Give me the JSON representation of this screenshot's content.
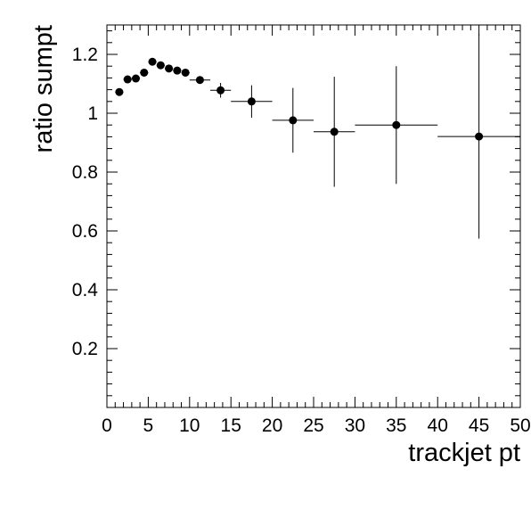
{
  "chart_data": {
    "type": "scatter",
    "title": "",
    "xlabel": "trackjet pt",
    "ylabel": "ratio sumpt",
    "xlim": [
      0,
      50
    ],
    "ylim": [
      0,
      1.3
    ],
    "grid": false,
    "x_ticks": [
      0,
      5,
      10,
      15,
      20,
      25,
      30,
      35,
      40,
      45,
      50
    ],
    "x_tick_labels": [
      "0",
      "5",
      "10",
      "15",
      "20",
      "25",
      "30",
      "35",
      "40",
      "45",
      "50"
    ],
    "y_ticks": [
      0.2,
      0.4,
      0.6,
      0.8,
      1.0,
      1.2
    ],
    "y_tick_labels": [
      "0.2",
      "0.4",
      "0.6",
      "0.8",
      "1",
      "1.2"
    ],
    "series": [
      {
        "marker_color": "#000000",
        "points": [
          {
            "x": 1.5,
            "y": 1.072,
            "xerr": 0.5,
            "yerr": 0.005
          },
          {
            "x": 2.5,
            "y": 1.115,
            "xerr": 0.5,
            "yerr": 0.005
          },
          {
            "x": 3.5,
            "y": 1.118,
            "xerr": 0.5,
            "yerr": 0.005
          },
          {
            "x": 4.5,
            "y": 1.138,
            "xerr": 0.5,
            "yerr": 0.006
          },
          {
            "x": 5.5,
            "y": 1.175,
            "xerr": 0.5,
            "yerr": 0.006
          },
          {
            "x": 6.5,
            "y": 1.163,
            "xerr": 0.5,
            "yerr": 0.007
          },
          {
            "x": 7.5,
            "y": 1.152,
            "xerr": 0.5,
            "yerr": 0.008
          },
          {
            "x": 8.5,
            "y": 1.145,
            "xerr": 0.5,
            "yerr": 0.009
          },
          {
            "x": 9.5,
            "y": 1.138,
            "xerr": 0.5,
            "yerr": 0.01
          },
          {
            "x": 11.25,
            "y": 1.113,
            "xerr": 1.25,
            "yerr": 0.012
          },
          {
            "x": 13.75,
            "y": 1.078,
            "xerr": 1.25,
            "yerr": 0.025
          },
          {
            "x": 17.5,
            "y": 1.04,
            "xerr": 2.5,
            "yerr": 0.055
          },
          {
            "x": 22.5,
            "y": 0.976,
            "xerr": 2.5,
            "yerr": 0.11
          },
          {
            "x": 27.5,
            "y": 0.937,
            "xerr": 2.5,
            "yerr": 0.187
          },
          {
            "x": 35.0,
            "y": 0.96,
            "xerr": 5.0,
            "yerr": 0.2
          },
          {
            "x": 45.0,
            "y": 0.921,
            "xerr": 5.0,
            "yerr": 0.347
          }
        ]
      }
    ]
  }
}
